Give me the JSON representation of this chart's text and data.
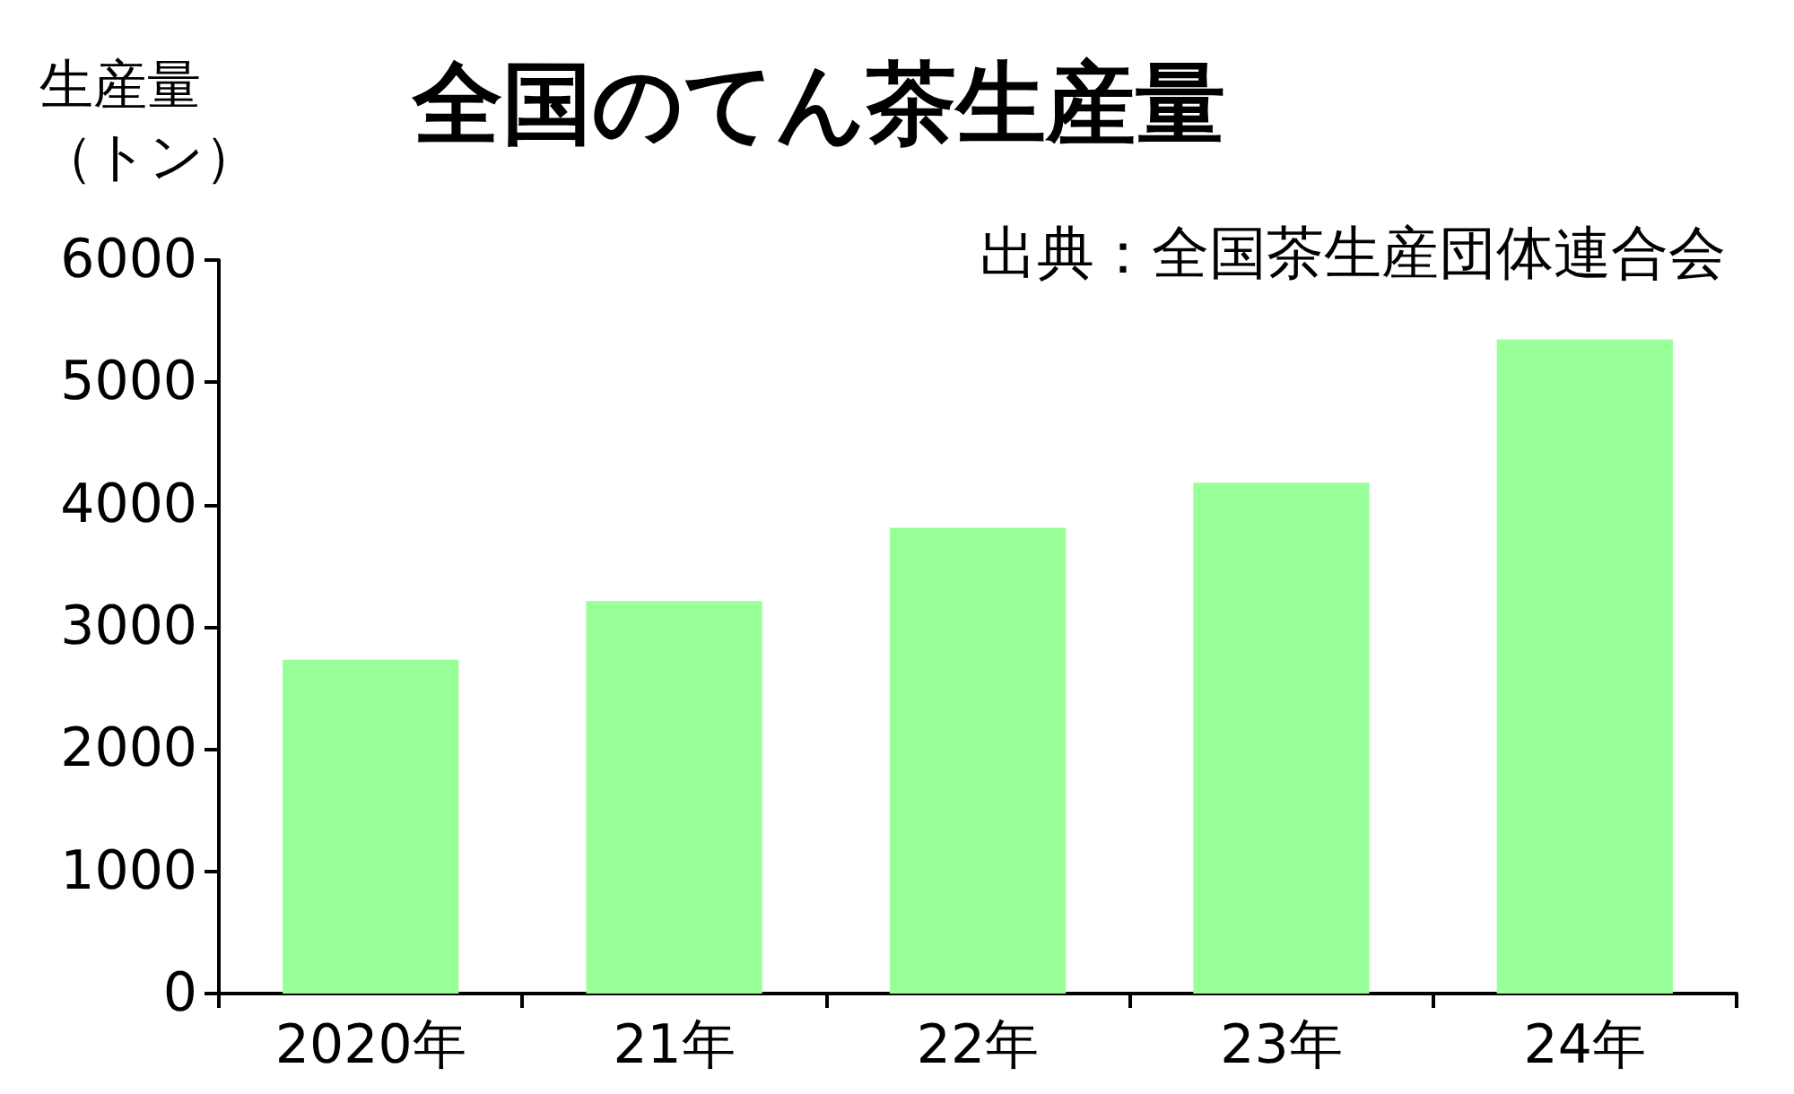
{
  "chart_data": {
    "type": "bar",
    "title": "全国のてん茶生産量",
    "ylabel": "生産量（トン）",
    "annotations": [
      "出典：全国茶生産団体連合会"
    ],
    "categories": [
      "2020年",
      "21年",
      "22年",
      "23年",
      "24年"
    ],
    "values": [
      2730,
      3210,
      3810,
      4180,
      5350
    ],
    "color": "#99ff99",
    "ylim": [
      0,
      6000
    ],
    "yticks": [
      0,
      1000,
      2000,
      3000,
      4000,
      5000,
      6000
    ],
    "grid": false
  }
}
